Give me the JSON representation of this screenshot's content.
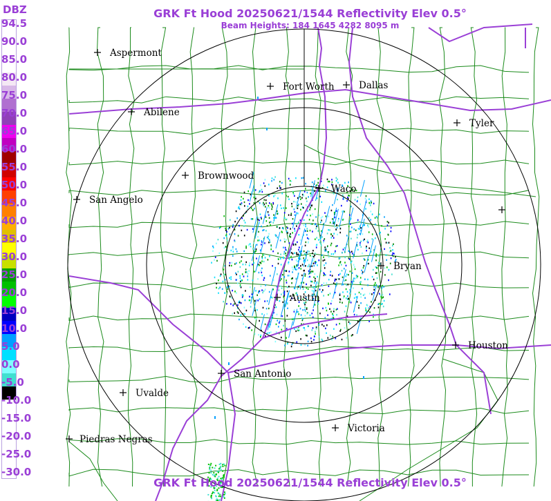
{
  "header": {
    "title": "GRK Ft Hood 20250621/1544 Reflectivity Elev 0.5°",
    "beam_heights": "Beam Heights: 184 1645 4282 8095 m"
  },
  "footer": {
    "title": "GRK Ft Hood 20250621/1544 Reflectivity Elev 0.5°"
  },
  "scale": {
    "unit": "DBZ",
    "labels": [
      "94.5",
      "90.0",
      "85.0",
      "80.0",
      "75.0",
      "70.0",
      "65.0",
      "60.0",
      "55.0",
      "50.0",
      "45.0",
      "40.0",
      "35.0",
      "30.0",
      "25.0",
      "20.0",
      "15.0",
      "10.0",
      "5.0",
      "0.0",
      "-5.0",
      "-10.0",
      "-15.0",
      "-20.0",
      "-25.0",
      "-30.0"
    ],
    "colors": [
      "#ffffff",
      "#ffffff",
      "#ffffff",
      "#ffffff",
      "#f4e8f4",
      "#d8b8e8",
      "#b070d0",
      "#9040b8",
      "#f000f0",
      "#c000c0",
      "#a00000",
      "#d00000",
      "#ff0000",
      "#ff4000",
      "#ff8000",
      "#ffb000",
      "#e0c000",
      "#ffff00",
      "#c8e000",
      "#00a000",
      "#00c000",
      "#00ff00",
      "#0000c0",
      "#0000ff",
      "#00a0ff",
      "#00e0ff",
      "#80ffff",
      "#40e0d0",
      "#000000",
      "#ffffff",
      "#ffffff",
      "#ffffff",
      "#ffffff",
      "#ffffff",
      "#ffffff"
    ]
  },
  "map": {
    "cities": [
      {
        "name": "Aspermont"
      },
      {
        "name": "Fort Worth"
      },
      {
        "name": "Dallas"
      },
      {
        "name": "Abilene"
      },
      {
        "name": "Tyler"
      },
      {
        "name": "Brownwood"
      },
      {
        "name": "Waco"
      },
      {
        "name": "San Angelo"
      },
      {
        "name": "Bryan"
      },
      {
        "name": "Austin"
      },
      {
        "name": "Houston"
      },
      {
        "name": "San Antonio"
      },
      {
        "name": "Uvalde"
      },
      {
        "name": "Victoria"
      },
      {
        "name": "Piedras Negras"
      },
      {
        "name": ""
      }
    ],
    "colors": {
      "county_lines": "#1a8a1a",
      "highways": "#9a3fd6",
      "range_rings": "#000000",
      "title_text": "#9a3fd6"
    }
  }
}
